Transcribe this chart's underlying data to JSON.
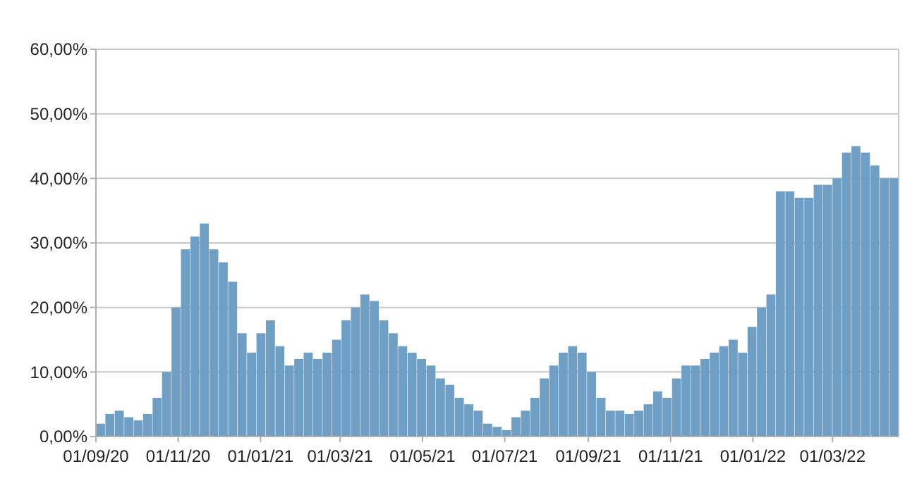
{
  "chart_data": {
    "type": "bar",
    "x": [
      "2020-09-01",
      "2020-09-08",
      "2020-09-15",
      "2020-09-22",
      "2020-09-29",
      "2020-10-06",
      "2020-10-13",
      "2020-10-20",
      "2020-10-27",
      "2020-11-03",
      "2020-11-10",
      "2020-11-17",
      "2020-11-24",
      "2020-12-01",
      "2020-12-08",
      "2020-12-15",
      "2020-12-22",
      "2020-12-29",
      "2021-01-05",
      "2021-01-12",
      "2021-01-19",
      "2021-01-26",
      "2021-02-02",
      "2021-02-09",
      "2021-02-16",
      "2021-02-23",
      "2021-03-02",
      "2021-03-09",
      "2021-03-16",
      "2021-03-23",
      "2021-03-30",
      "2021-04-06",
      "2021-04-13",
      "2021-04-20",
      "2021-04-27",
      "2021-05-04",
      "2021-05-11",
      "2021-05-18",
      "2021-05-25",
      "2021-06-01",
      "2021-06-08",
      "2021-06-15",
      "2021-06-22",
      "2021-06-29",
      "2021-07-06",
      "2021-07-13",
      "2021-07-20",
      "2021-07-27",
      "2021-08-03",
      "2021-08-10",
      "2021-08-17",
      "2021-08-24",
      "2021-08-31",
      "2021-09-07",
      "2021-09-14",
      "2021-09-21",
      "2021-09-28",
      "2021-10-05",
      "2021-10-12",
      "2021-10-19",
      "2021-10-26",
      "2021-11-02",
      "2021-11-09",
      "2021-11-16",
      "2021-11-23",
      "2021-11-30",
      "2021-12-07",
      "2021-12-14",
      "2021-12-21",
      "2021-12-28",
      "2022-01-04",
      "2022-01-11",
      "2022-01-18",
      "2022-01-25",
      "2022-02-01",
      "2022-02-08",
      "2022-02-15",
      "2022-02-22",
      "2022-03-01",
      "2022-03-08",
      "2022-03-15",
      "2022-03-22",
      "2022-03-29",
      "2022-04-05",
      "2022-04-12"
    ],
    "values": [
      2,
      3.5,
      4,
      3,
      2.5,
      3.5,
      6,
      10,
      20,
      29,
      31,
      33,
      29,
      27,
      24,
      16,
      13,
      16,
      18,
      14,
      11,
      12,
      13,
      12,
      13,
      15,
      18,
      20,
      22,
      21,
      18,
      16,
      14,
      13,
      12,
      11,
      9,
      8,
      6,
      5,
      4,
      2,
      1.5,
      1,
      3,
      4,
      6,
      9,
      11,
      13,
      14,
      13,
      10,
      6,
      4,
      4,
      3.5,
      4,
      5,
      7,
      6,
      9,
      11,
      11,
      12,
      13,
      14,
      15,
      13,
      17,
      20,
      22,
      38,
      38,
      37,
      37,
      39,
      39,
      40,
      44,
      45,
      44,
      42,
      40,
      40
    ],
    "color": "#6f9fc4",
    "xlim": [
      "2020-09-01",
      "2022-04-19"
    ],
    "xticks": [
      {
        "value": "2020-09-01",
        "label": "01/09/20"
      },
      {
        "value": "2020-11-01",
        "label": "01/11/20"
      },
      {
        "value": "2021-01-01",
        "label": "01/01/21"
      },
      {
        "value": "2021-03-01",
        "label": "01/03/21"
      },
      {
        "value": "2021-05-01",
        "label": "01/05/21"
      },
      {
        "value": "2021-07-01",
        "label": "01/07/21"
      },
      {
        "value": "2021-09-01",
        "label": "01/09/21"
      },
      {
        "value": "2021-11-01",
        "label": "01/11/21"
      },
      {
        "value": "2022-01-01",
        "label": "01/01/22"
      },
      {
        "value": "2022-03-01",
        "label": "01/03/22"
      }
    ],
    "ylim": [
      0,
      60
    ],
    "yticks": [
      {
        "value": 0,
        "label": "0,00%"
      },
      {
        "value": 10,
        "label": "10,00%"
      },
      {
        "value": 20,
        "label": "20,00%"
      },
      {
        "value": 30,
        "label": "30,00%"
      },
      {
        "value": 40,
        "label": "40,00%"
      },
      {
        "value": 50,
        "label": "50,00%"
      },
      {
        "value": 60,
        "label": "60,00%"
      }
    ],
    "grid": "y"
  }
}
